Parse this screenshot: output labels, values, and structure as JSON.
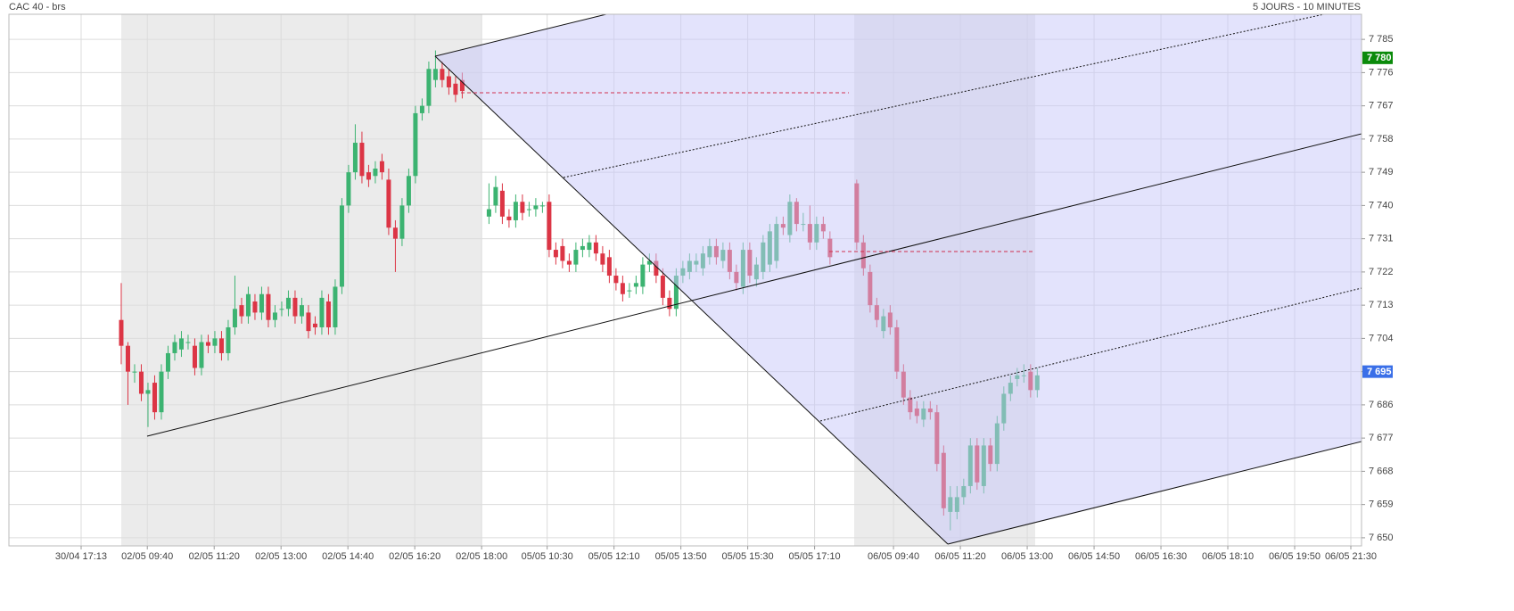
{
  "chart_data": {
    "type": "candlestick",
    "title": "CAC 40 - brs",
    "subtitle": "5 JOURS - 10 MINUTES",
    "up_color": "#3cb371",
    "down_color": "#dc3545",
    "grid": true,
    "xlim": [
      -16.8,
      185.5
    ],
    "ylim": [
      7647.8,
      7791.8
    ],
    "xticks": [
      {
        "value": -6,
        "label": "30/04 17:13"
      },
      {
        "value": 3.9,
        "label": "02/05 09:40"
      },
      {
        "value": 13.9,
        "label": "02/05 11:20"
      },
      {
        "value": 23.9,
        "label": "02/05 13:00"
      },
      {
        "value": 33.9,
        "label": "02/05 14:40"
      },
      {
        "value": 43.9,
        "label": "02/05 16:20"
      },
      {
        "value": 53.9,
        "label": "02/05 18:00"
      },
      {
        "value": 63.7,
        "label": "05/05 10:30"
      },
      {
        "value": 73.7,
        "label": "05/05 12:10"
      },
      {
        "value": 83.7,
        "label": "05/05 13:50"
      },
      {
        "value": 93.7,
        "label": "05/05 15:30"
      },
      {
        "value": 103.7,
        "label": "05/05 17:10"
      },
      {
        "value": 115.5,
        "label": "06/05 09:40"
      },
      {
        "value": 125.5,
        "label": "06/05 11:20"
      },
      {
        "value": 135.5,
        "label": "06/05 13:00"
      },
      {
        "value": 145.5,
        "label": "06/05 14:50"
      },
      {
        "value": 155.5,
        "label": "06/05 16:30"
      },
      {
        "value": 165.5,
        "label": "06/05 18:10"
      },
      {
        "value": 175.5,
        "label": "06/05 19:50"
      },
      {
        "value": 183.9,
        "label": "06/05 21:30"
      }
    ],
    "yticks": [
      {
        "value": 7785,
        "label": "7 785"
      },
      {
        "value": 7776,
        "label": "7 776"
      },
      {
        "value": 7767,
        "label": "7 767"
      },
      {
        "value": 7758,
        "label": "7 758"
      },
      {
        "value": 7749,
        "label": "7 749"
      },
      {
        "value": 7740,
        "label": "7 740"
      },
      {
        "value": 7731,
        "label": "7 731"
      },
      {
        "value": 7722,
        "label": "7 722"
      },
      {
        "value": 7713,
        "label": "7 713"
      },
      {
        "value": 7704,
        "label": "7 704"
      },
      {
        "value": 7695,
        "label": "7 695"
      },
      {
        "value": 7686,
        "label": "7 686"
      },
      {
        "value": 7677,
        "label": "7 677"
      },
      {
        "value": 7668,
        "label": "7 668"
      },
      {
        "value": 7659,
        "label": "7 659"
      },
      {
        "value": 7650,
        "label": "7 650"
      }
    ],
    "price_tags": [
      {
        "value": 7780,
        "label": "7 780",
        "color": "#0a8a0a"
      },
      {
        "value": 7695,
        "label": "7 695",
        "color": "#3a6fe8"
      }
    ],
    "candles": {
      "x": [
        0,
        1,
        2,
        3,
        4,
        5,
        6,
        7,
        8,
        9,
        10,
        11,
        12,
        13,
        14,
        15,
        16,
        17,
        18,
        19,
        20,
        21,
        22,
        23,
        24,
        25,
        26,
        27,
        28,
        29,
        30,
        31,
        32,
        33,
        34,
        35,
        36,
        37,
        38,
        39,
        40,
        41,
        42,
        43,
        44,
        45,
        46,
        47,
        48,
        49,
        50,
        51,
        55,
        56,
        57,
        58,
        59,
        60,
        61,
        62,
        63,
        64,
        65,
        66,
        67,
        68,
        69,
        70,
        71,
        72,
        73,
        74,
        75,
        76,
        77,
        78,
        79,
        80,
        81,
        82,
        83,
        84,
        85,
        86,
        87,
        88,
        89,
        90,
        91,
        92,
        93,
        94,
        95,
        96,
        97,
        98,
        99,
        100,
        101,
        102,
        103,
        104,
        105,
        106,
        110,
        111,
        112,
        113,
        114,
        115,
        116,
        117,
        118,
        119,
        120,
        121,
        122,
        123,
        124,
        125,
        126,
        127,
        128,
        129,
        130,
        131,
        132,
        133,
        134,
        135,
        136,
        137
      ],
      "open": [
        7709,
        7702,
        7695,
        7695,
        7689,
        7692,
        7684,
        7695,
        7700,
        7701,
        7703,
        7702,
        7696,
        7703,
        7702,
        7704,
        7700,
        7707,
        7713,
        7710,
        7714,
        7711,
        7716,
        7709,
        7712,
        7712,
        7715,
        7710,
        7711,
        7708,
        7707,
        7714,
        7707,
        7718,
        7740,
        7749,
        7757,
        7749,
        7748,
        7752,
        7747,
        7734,
        7731,
        7740,
        7748,
        7765,
        7767,
        7774,
        7777,
        7775,
        7773,
        7774,
        7737,
        7740,
        7744,
        7737,
        7736,
        7741,
        7739,
        7739,
        7740,
        7741,
        7728,
        7729,
        7725,
        7724,
        7728,
        7728,
        7730,
        7727,
        7726,
        7721,
        7719,
        7717,
        7718,
        7718,
        7724,
        7725,
        7721,
        7715,
        7712,
        7721,
        7722,
        7724,
        7723,
        7726,
        7729,
        7725,
        7728,
        7722,
        7718,
        7728,
        7720,
        7722,
        7724,
        7725,
        7735,
        7732,
        7741,
        7735,
        7735,
        7730,
        7735,
        7731,
        7746,
        7730,
        7722,
        7713,
        7706,
        7711,
        7707,
        7695,
        7688,
        7685,
        7682,
        7685,
        7684,
        7673,
        7657,
        7657,
        7661,
        7664,
        7675,
        7664,
        7675,
        7670,
        7681,
        7689,
        7693,
        7694,
        7695,
        7690
      ],
      "high": [
        7719,
        7703,
        7697,
        7697,
        7692,
        7694,
        7697,
        7702,
        7705,
        7706,
        7705,
        7704,
        7705,
        7705,
        7706,
        7706,
        7709,
        7721,
        7715,
        7718,
        7716,
        7718,
        7718,
        7713,
        7714,
        7717,
        7717,
        7715,
        7713,
        7710,
        7717,
        7716,
        7720,
        7742,
        7751,
        7762,
        7760,
        7751,
        7752,
        7754,
        7750,
        7736,
        7742,
        7750,
        7767,
        7769,
        7779,
        7782,
        7779,
        7777,
        7775,
        7776,
        7746,
        7748,
        7746,
        7739,
        7743,
        7743,
        7741,
        7742,
        7741,
        7743,
        7730,
        7731,
        7727,
        7730,
        7731,
        7732,
        7732,
        7729,
        7728,
        7723,
        7721,
        7719,
        7721,
        7726,
        7727,
        7727,
        7723,
        7717,
        7723,
        7725,
        7727,
        7727,
        7729,
        7731,
        7731,
        7730,
        7730,
        7724,
        7730,
        7730,
        7726,
        7732,
        7735,
        7737,
        7737,
        7743,
        7742,
        7738,
        7740,
        7737,
        7737,
        7733,
        7747,
        7732,
        7724,
        7715,
        7712,
        7713,
        7709,
        7697,
        7690,
        7687,
        7687,
        7687,
        7686,
        7675,
        7664,
        7664,
        7666,
        7677,
        7677,
        7677,
        7677,
        7683,
        7691,
        7694,
        7696,
        7697,
        7697,
        7696
      ],
      "low": [
        7697,
        7686,
        7692,
        7687,
        7680,
        7682,
        7682,
        7693,
        7698,
        7699,
        7701,
        7694,
        7694,
        7700,
        7700,
        7698,
        7698,
        7705,
        7708,
        7708,
        7709,
        7709,
        7707,
        7707,
        7710,
        7710,
        7708,
        7708,
        7704,
        7705,
        7705,
        7705,
        7705,
        7716,
        7738,
        7747,
        7746,
        7745,
        7746,
        7747,
        7732,
        7722,
        7729,
        7738,
        7746,
        7763,
        7765,
        7772,
        7772,
        7770,
        7768,
        7769,
        7735,
        7738,
        7735,
        7734,
        7734,
        7736,
        7737,
        7737,
        7738,
        7726,
        7724,
        7723,
        7722,
        7722,
        7726,
        7726,
        7725,
        7722,
        7719,
        7717,
        7714,
        7715,
        7716,
        7716,
        7722,
        7719,
        7713,
        7710,
        7710,
        7719,
        7720,
        7722,
        7721,
        7724,
        7724,
        7723,
        7720,
        7717,
        7716,
        7719,
        7718,
        7720,
        7722,
        7723,
        7732,
        7730,
        7733,
        7733,
        7728,
        7728,
        7731,
        7724,
        7728,
        7721,
        7711,
        7707,
        7704,
        7705,
        7693,
        7686,
        7682,
        7681,
        7680,
        7682,
        7668,
        7656,
        7652,
        7655,
        7659,
        7662,
        7663,
        7662,
        7668,
        7668,
        7679,
        7687,
        7691,
        7692,
        7688,
        7688
      ],
      "close": [
        7702,
        7695,
        7695,
        7689,
        7690,
        7684,
        7695,
        7700,
        7703,
        7704,
        7703,
        7696,
        7703,
        7702,
        7704,
        7700,
        7707,
        7712,
        7710,
        7716,
        7711,
        7716,
        7709,
        7711,
        7712,
        7715,
        7710,
        7713,
        7706,
        7707,
        7715,
        7707,
        7718,
        7740,
        7749,
        7757,
        7748,
        7747,
        7750,
        7749,
        7734,
        7731,
        7740,
        7748,
        7765,
        7767,
        7777,
        7777,
        7774,
        7772,
        7770,
        7771,
        7739,
        7745,
        7737,
        7736,
        7741,
        7738,
        7739,
        7740,
        7740,
        7728,
        7726,
        7725,
        7724,
        7728,
        7729,
        7730,
        7727,
        7724,
        7721,
        7719,
        7716,
        7717,
        7719,
        7724,
        7725,
        7721,
        7715,
        7712,
        7721,
        7723,
        7725,
        7725,
        7727,
        7729,
        7726,
        7728,
        7722,
        7719,
        7728,
        7721,
        7724,
        7730,
        7733,
        7735,
        7734,
        7741,
        7735,
        7735,
        7730,
        7735,
        7733,
        7726,
        7730,
        7723,
        7713,
        7709,
        7710,
        7707,
        7695,
        7688,
        7684,
        7683,
        7685,
        7684,
        7670,
        7658,
        7661,
        7661,
        7664,
        7675,
        7665,
        7675,
        7670,
        7681,
        7689,
        7692,
        7694,
        7694,
        7690,
        7694
      ]
    }
  }
}
